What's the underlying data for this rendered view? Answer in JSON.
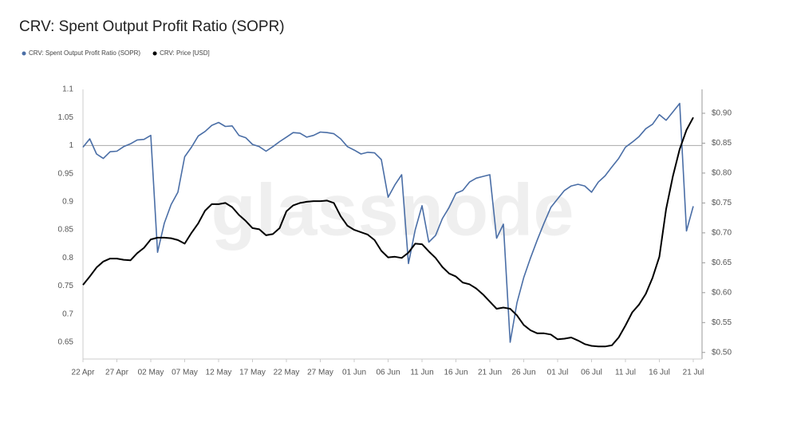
{
  "chart_data": {
    "type": "line",
    "title": "CRV: Spent Output Profit Ratio (SOPR)",
    "watermark": "glassnode",
    "legend": "top-left",
    "categories": [
      "22 Apr",
      null,
      null,
      null,
      null,
      "27 Apr",
      null,
      null,
      null,
      null,
      "02 May",
      null,
      null,
      null,
      null,
      "07 May",
      null,
      null,
      null,
      null,
      "12 May",
      null,
      null,
      null,
      null,
      "17 May",
      null,
      null,
      null,
      null,
      "22 May",
      null,
      null,
      null,
      null,
      "27 May",
      null,
      null,
      null,
      null,
      "01 Jun",
      null,
      null,
      null,
      null,
      "06 Jun",
      null,
      null,
      null,
      null,
      "11 Jun",
      null,
      null,
      null,
      null,
      "16 Jun",
      null,
      null,
      null,
      null,
      "21 Jun",
      null,
      null,
      null,
      null,
      "26 Jun",
      null,
      null,
      null,
      null,
      "01 Jul",
      null,
      null,
      null,
      null,
      "06 Jul",
      null,
      null,
      null,
      null,
      "11 Jul",
      null,
      null,
      null,
      null,
      "16 Jul",
      null,
      null,
      null,
      null,
      "21 Jul"
    ],
    "series": [
      {
        "name": "CRV: Spent Output Profit Ratio (SOPR)",
        "color": "#4a6ea6",
        "axis": "y",
        "values": [
          0.997,
          1.012,
          0.985,
          0.977,
          0.989,
          0.99,
          0.998,
          1.003,
          1.01,
          1.011,
          1.018,
          0.81,
          0.862,
          0.895,
          0.917,
          0.98,
          0.997,
          1.017,
          1.025,
          1.036,
          1.041,
          1.034,
          1.035,
          1.018,
          1.014,
          1.002,
          0.998,
          0.99,
          0.998,
          1.007,
          1.015,
          1.023,
          1.022,
          1.015,
          1.018,
          1.024,
          1.023,
          1.021,
          1.012,
          0.998,
          0.992,
          0.985,
          0.988,
          0.987,
          0.975,
          0.908,
          0.93,
          0.948,
          0.79,
          0.85,
          0.893,
          0.828,
          0.84,
          0.87,
          0.89,
          0.915,
          0.92,
          0.935,
          0.942,
          0.945,
          0.948,
          0.835,
          0.86,
          0.65,
          0.72,
          0.765,
          0.8,
          0.832,
          0.862,
          0.89,
          0.905,
          0.92,
          0.928,
          0.931,
          0.928,
          0.917,
          0.935,
          0.946,
          0.962,
          0.977,
          0.997,
          1.006,
          1.016,
          1.03,
          1.038,
          1.055,
          1.045,
          1.06,
          1.075,
          0.848,
          0.892
        ]
      },
      {
        "name": "CRV: Price [USD]",
        "color": "#000000",
        "axis": "y2",
        "values": [
          0.613,
          0.627,
          0.642,
          0.652,
          0.657,
          0.657,
          0.655,
          0.654,
          0.666,
          0.675,
          0.689,
          0.692,
          0.692,
          0.691,
          0.688,
          0.682,
          0.7,
          0.716,
          0.737,
          0.748,
          0.748,
          0.75,
          0.743,
          0.73,
          0.72,
          0.708,
          0.706,
          0.696,
          0.698,
          0.708,
          0.736,
          0.746,
          0.75,
          0.752,
          0.753,
          0.753,
          0.754,
          0.75,
          0.728,
          0.712,
          0.705,
          0.701,
          0.697,
          0.688,
          0.67,
          0.659,
          0.66,
          0.658,
          0.667,
          0.682,
          0.681,
          0.669,
          0.658,
          0.643,
          0.632,
          0.627,
          0.617,
          0.614,
          0.607,
          0.597,
          0.585,
          0.573,
          0.575,
          0.573,
          0.562,
          0.546,
          0.537,
          0.532,
          0.532,
          0.53,
          0.522,
          0.523,
          0.525,
          0.52,
          0.514,
          0.511,
          0.51,
          0.51,
          0.512,
          0.525,
          0.545,
          0.567,
          0.58,
          0.598,
          0.625,
          0.66,
          0.74,
          0.795,
          0.84,
          0.872,
          0.893
        ]
      }
    ],
    "ylim": [
      0.62,
      1.1
    ],
    "yticks": [
      0.65,
      0.7,
      0.75,
      0.8,
      0.85,
      0.9,
      0.95,
      1,
      1.05,
      1.1
    ],
    "y2lim": [
      0.489,
      0.94
    ],
    "y2ticks": [
      {
        "value": 0.5,
        "label": "$0.50"
      },
      {
        "value": 0.55,
        "label": "$0.55"
      },
      {
        "value": 0.6,
        "label": "$0.60"
      },
      {
        "value": 0.65,
        "label": "$0.65"
      },
      {
        "value": 0.7,
        "label": "$0.70"
      },
      {
        "value": 0.75,
        "label": "$0.75"
      },
      {
        "value": 0.8,
        "label": "$0.80"
      },
      {
        "value": 0.85,
        "label": "$0.85"
      },
      {
        "value": 0.9,
        "label": "$0.90"
      }
    ],
    "hline": 1,
    "grid": false
  }
}
